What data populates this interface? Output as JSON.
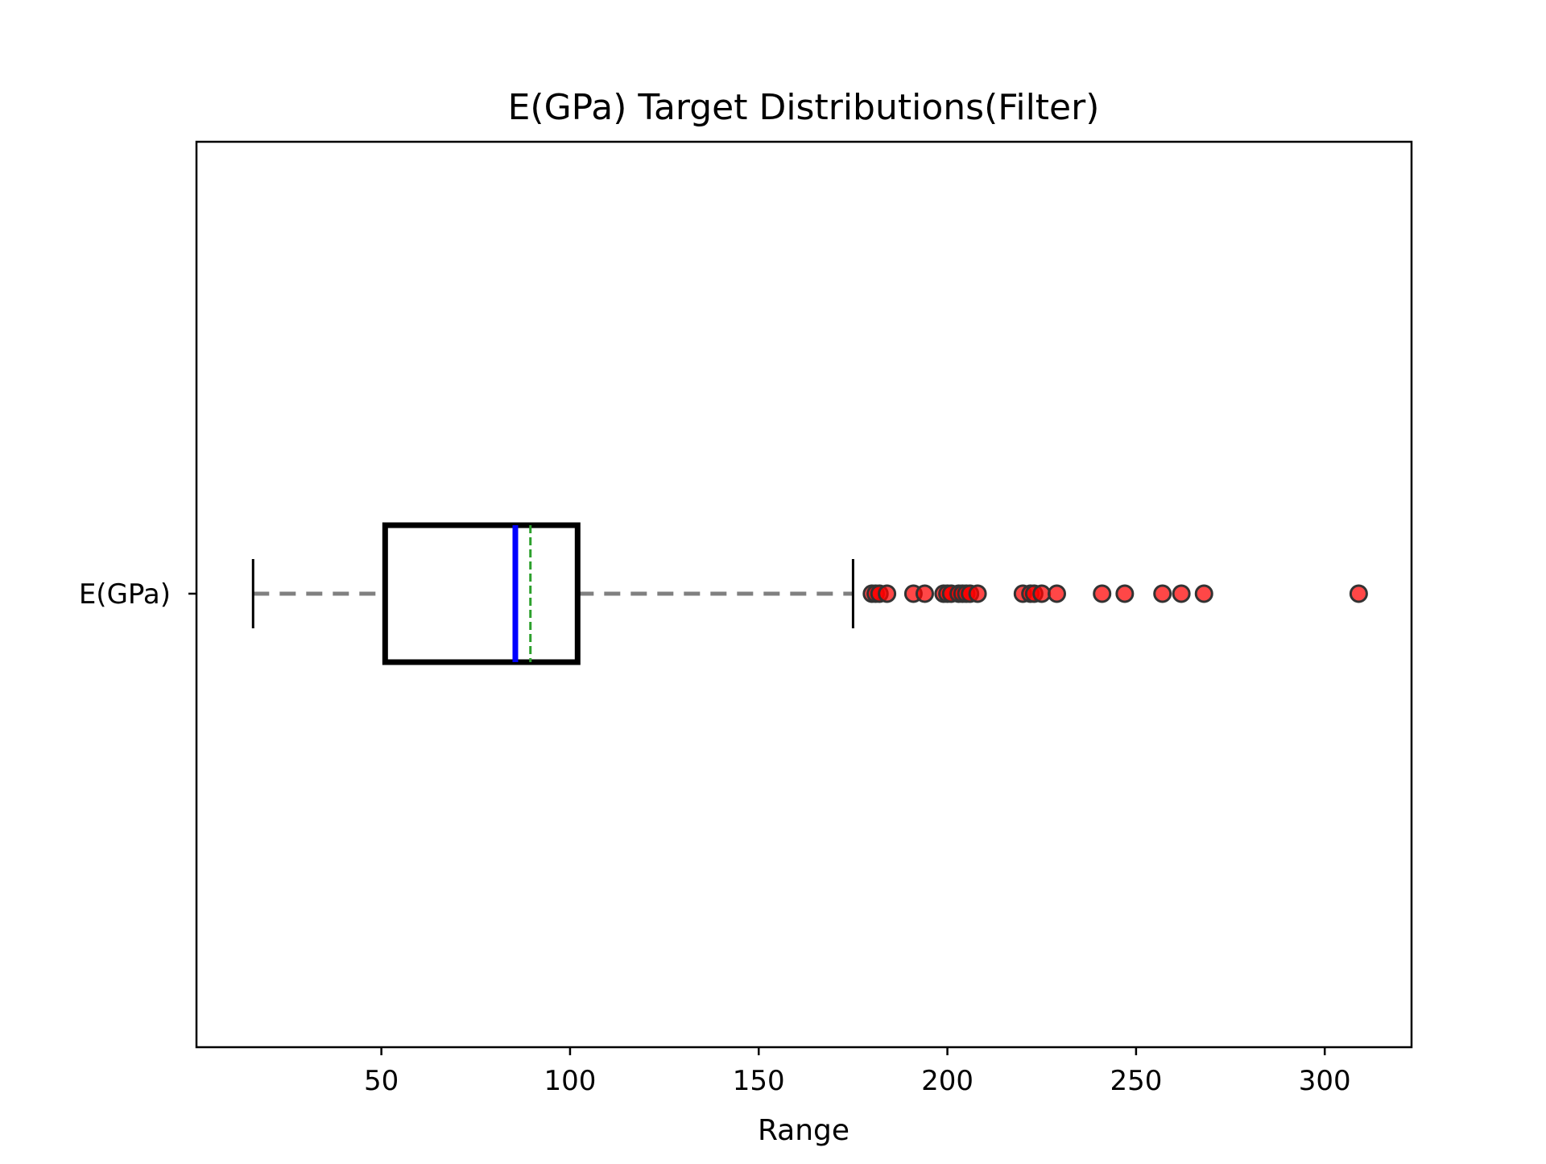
{
  "chart_data": {
    "type": "box",
    "orientation": "horizontal",
    "title": "E(GPa) Target Distributions(Filter)",
    "xlabel": "Range",
    "ylabel": "",
    "category": "E(GPa)",
    "xlim": [
      1,
      323
    ],
    "x_ticks": [
      50,
      100,
      150,
      200,
      250,
      300
    ],
    "grid": false,
    "box": {
      "whisker_low": 16,
      "q1": 51,
      "median": 85.5,
      "mean": 89.5,
      "q3": 102,
      "whisker_high": 175
    },
    "outliers": [
      180,
      181,
      182,
      184,
      191,
      194,
      199,
      200,
      201,
      203,
      204,
      205,
      206,
      208,
      220,
      222,
      223,
      225,
      229,
      241,
      247,
      257,
      262,
      268,
      309
    ],
    "colors": {
      "box": "#000000",
      "median": "#0000ff",
      "mean": "#2ca02c",
      "whisker": "#808080",
      "cap": "#000000",
      "outlier_fill": "#ff0000",
      "outlier_edge": "#333333"
    }
  }
}
